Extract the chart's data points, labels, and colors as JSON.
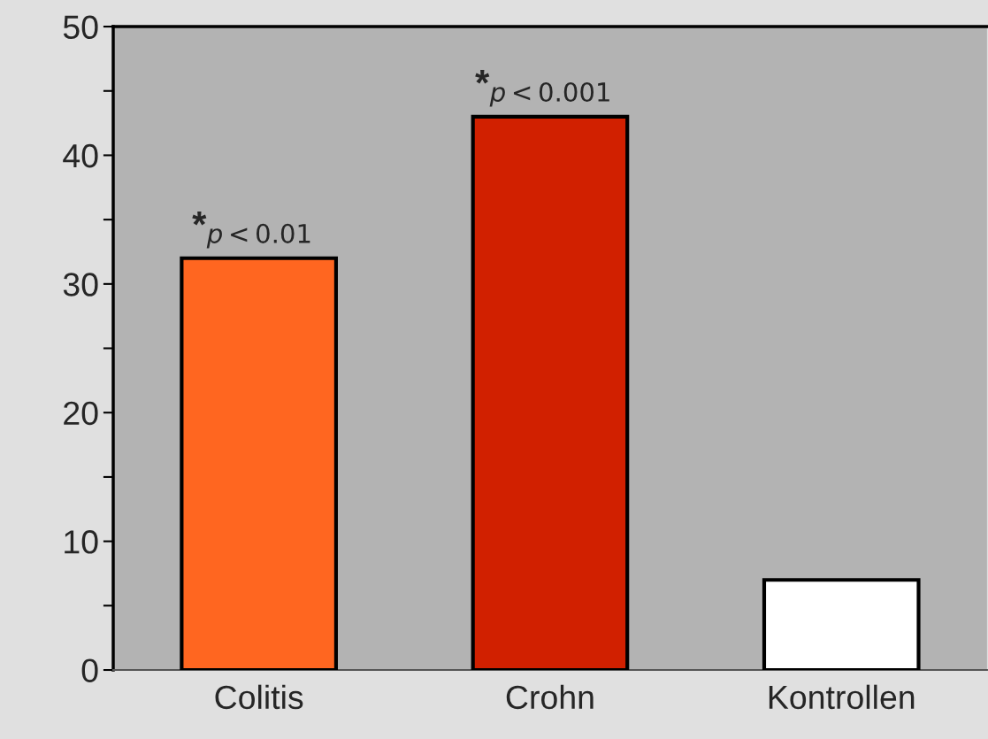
{
  "chart_data": {
    "type": "bar",
    "categories": [
      "Colitis",
      "Crohn",
      "Kontrollen"
    ],
    "values": [
      32,
      43,
      7
    ],
    "colors": [
      "#ff6620",
      "#d12000",
      "#ffffff"
    ],
    "ylim": [
      0,
      50
    ],
    "yticks": [
      0,
      {
        "value": 5,
        "label": null
      },
      10,
      {
        "value": 15,
        "label": null
      },
      20,
      {
        "value": 25,
        "label": null
      },
      30,
      {
        "value": 35,
        "label": null
      },
      40,
      {
        "value": 45,
        "label": null
      },
      50
    ],
    "annotations": [
      {
        "text": "*$_{p<0.01}$",
        "x": "Colitis",
        "y": 32
      },
      {
        "text": "*$_{p<0.001}$",
        "x": "Crohn",
        "y": 43
      }
    ],
    "grid": false,
    "legend": false
  }
}
